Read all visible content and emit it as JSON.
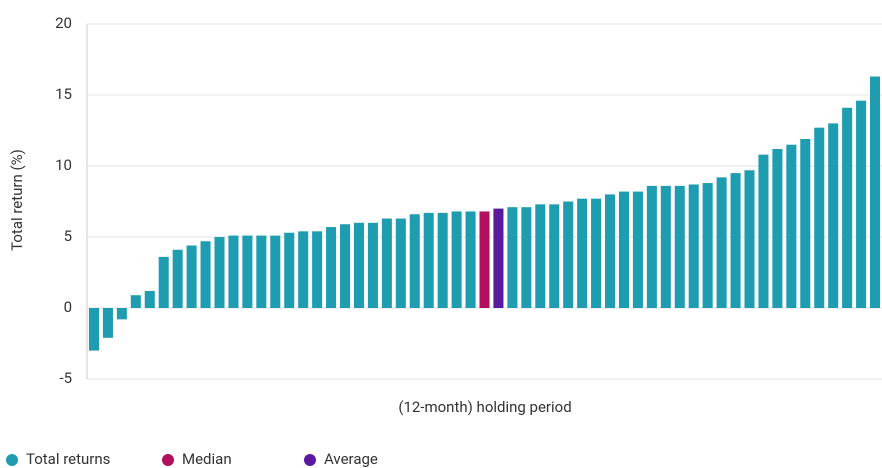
{
  "chart_data": {
    "type": "bar",
    "ylabel": "Total return (%)",
    "xlabel": "(12-month) holding period",
    "ylim": [
      -5,
      20
    ],
    "yticks": [
      -5,
      0,
      5,
      10,
      15,
      20
    ],
    "grid": true,
    "series": [
      {
        "name": "Total returns",
        "color": "#1e9db0",
        "values": [
          -3.0,
          -2.1,
          -0.8,
          0.9,
          1.2,
          3.6,
          4.1,
          4.4,
          4.7,
          5.0,
          5.1,
          5.1,
          5.1,
          5.1,
          5.3,
          5.4,
          5.4,
          5.7,
          5.9,
          6.0,
          6.0,
          6.3,
          6.3,
          6.6,
          6.7,
          6.7,
          6.8,
          6.8,
          null,
          null,
          7.1,
          7.1,
          7.3,
          7.3,
          7.5,
          7.7,
          7.7,
          8.0,
          8.2,
          8.2,
          8.6,
          8.6,
          8.6,
          8.7,
          8.8,
          9.2,
          9.5,
          9.7,
          10.8,
          11.2,
          11.5,
          11.9,
          12.7,
          13.0,
          14.1,
          14.6,
          16.3
        ]
      },
      {
        "name": "Median",
        "color": "#b0105e",
        "values": [
          null,
          null,
          null,
          null,
          null,
          null,
          null,
          null,
          null,
          null,
          null,
          null,
          null,
          null,
          null,
          null,
          null,
          null,
          null,
          null,
          null,
          null,
          null,
          null,
          null,
          null,
          null,
          null,
          6.8,
          null,
          null,
          null,
          null,
          null,
          null,
          null,
          null,
          null,
          null,
          null,
          null,
          null,
          null,
          null,
          null,
          null,
          null,
          null,
          null,
          null,
          null,
          null,
          null,
          null,
          null,
          null,
          null
        ]
      },
      {
        "name": "Average",
        "color": "#5a1aa0",
        "values": [
          null,
          null,
          null,
          null,
          null,
          null,
          null,
          null,
          null,
          null,
          null,
          null,
          null,
          null,
          null,
          null,
          null,
          null,
          null,
          null,
          null,
          null,
          null,
          null,
          null,
          null,
          null,
          null,
          null,
          7.0,
          null,
          null,
          null,
          null,
          null,
          null,
          null,
          null,
          null,
          null,
          null,
          null,
          null,
          null,
          null,
          null,
          null,
          null,
          null,
          null,
          null,
          null,
          null,
          null,
          null,
          null,
          null
        ]
      }
    ]
  }
}
